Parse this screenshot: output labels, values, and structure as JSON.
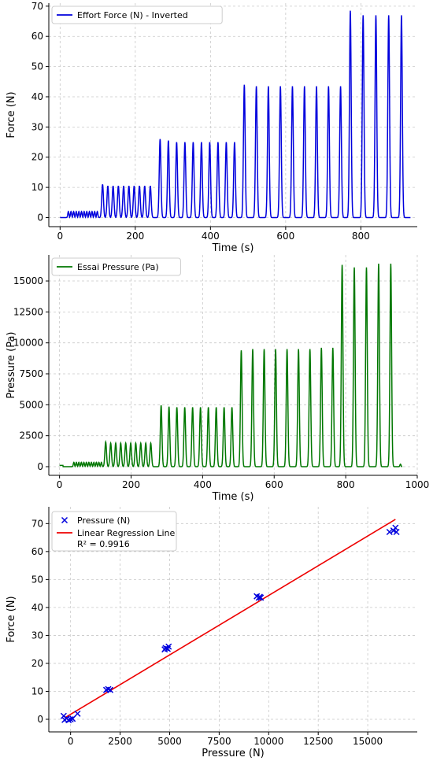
{
  "chart_data": [
    {
      "type": "line",
      "xlabel": "Time (s)",
      "ylabel": "Force (N)",
      "xlim": [
        -30,
        950
      ],
      "ylim": [
        -3,
        71
      ],
      "xticks": [
        0,
        200,
        400,
        600,
        800
      ],
      "yticks": [
        0,
        10,
        20,
        30,
        40,
        50,
        60,
        70
      ],
      "grid": true,
      "legend_position": "top-left",
      "color": "#0000dd",
      "series": [
        {
          "name": "Effort Force (N) - Inverted",
          "baseline_start": [
            0,
            -0.5
          ],
          "baseline_end": [
            932,
            0
          ],
          "peaks": [
            {
              "t": 22,
              "v": 2
            },
            {
              "t": 29,
              "v": 2
            },
            {
              "t": 36,
              "v": 2
            },
            {
              "t": 43,
              "v": 2
            },
            {
              "t": 50,
              "v": 2
            },
            {
              "t": 57,
              "v": 2
            },
            {
              "t": 64,
              "v": 2
            },
            {
              "t": 71,
              "v": 2
            },
            {
              "t": 78,
              "v": 2
            },
            {
              "t": 85,
              "v": 2
            },
            {
              "t": 92,
              "v": 2
            },
            {
              "t": 99,
              "v": 2
            },
            {
              "t": 113,
              "v": 11
            },
            {
              "t": 127,
              "v": 10.5
            },
            {
              "t": 141,
              "v": 10.5
            },
            {
              "t": 155,
              "v": 10.5
            },
            {
              "t": 169,
              "v": 10.5
            },
            {
              "t": 183,
              "v": 10.5
            },
            {
              "t": 197,
              "v": 10.5
            },
            {
              "t": 211,
              "v": 10.5
            },
            {
              "t": 225,
              "v": 10.5
            },
            {
              "t": 240,
              "v": 10.5
            },
            {
              "t": 266,
              "v": 26
            },
            {
              "t": 288,
              "v": 25.5
            },
            {
              "t": 310,
              "v": 25
            },
            {
              "t": 332,
              "v": 25
            },
            {
              "t": 354,
              "v": 25
            },
            {
              "t": 376,
              "v": 25
            },
            {
              "t": 398,
              "v": 25
            },
            {
              "t": 420,
              "v": 25
            },
            {
              "t": 442,
              "v": 25
            },
            {
              "t": 464,
              "v": 25
            },
            {
              "t": 490,
              "v": 44
            },
            {
              "t": 522,
              "v": 43.5
            },
            {
              "t": 554,
              "v": 43.5
            },
            {
              "t": 586,
              "v": 43.5
            },
            {
              "t": 618,
              "v": 43.5
            },
            {
              "t": 650,
              "v": 43.5
            },
            {
              "t": 682,
              "v": 43.5
            },
            {
              "t": 714,
              "v": 43.5
            },
            {
              "t": 746,
              "v": 43.5
            },
            {
              "t": 772,
              "v": 68.5
            },
            {
              "t": 806,
              "v": 67
            },
            {
              "t": 840,
              "v": 67
            },
            {
              "t": 874,
              "v": 67
            },
            {
              "t": 908,
              "v": 67
            }
          ]
        }
      ]
    },
    {
      "type": "line",
      "xlabel": "Time (s)",
      "ylabel": "Pressure (Pa)",
      "xlim": [
        -30,
        1000
      ],
      "ylim": [
        -700,
        17100
      ],
      "xticks": [
        0,
        200,
        400,
        600,
        800,
        1000
      ],
      "yticks": [
        0,
        2500,
        5000,
        7500,
        10000,
        12500,
        15000
      ],
      "grid": true,
      "legend_position": "top-left",
      "color": "#007700",
      "series": [
        {
          "name": "Essai Pressure (Pa)",
          "baseline_start": [
            0,
            100
          ],
          "baseline_end": [
            958,
            0
          ],
          "peaks": [
            {
              "t": 40,
              "v": 350
            },
            {
              "t": 47,
              "v": 350
            },
            {
              "t": 54,
              "v": 350
            },
            {
              "t": 61,
              "v": 350
            },
            {
              "t": 68,
              "v": 350
            },
            {
              "t": 75,
              "v": 350
            },
            {
              "t": 82,
              "v": 350
            },
            {
              "t": 89,
              "v": 350
            },
            {
              "t": 96,
              "v": 350
            },
            {
              "t": 103,
              "v": 350
            },
            {
              "t": 110,
              "v": 350
            },
            {
              "t": 117,
              "v": 350
            },
            {
              "t": 129,
              "v": 2000
            },
            {
              "t": 143,
              "v": 1900
            },
            {
              "t": 157,
              "v": 1900
            },
            {
              "t": 171,
              "v": 1900
            },
            {
              "t": 185,
              "v": 1900
            },
            {
              "t": 199,
              "v": 1900
            },
            {
              "t": 213,
              "v": 1900
            },
            {
              "t": 227,
              "v": 1900
            },
            {
              "t": 241,
              "v": 1900
            },
            {
              "t": 255,
              "v": 1900
            },
            {
              "t": 284,
              "v": 4950
            },
            {
              "t": 306,
              "v": 4850
            },
            {
              "t": 328,
              "v": 4800
            },
            {
              "t": 350,
              "v": 4800
            },
            {
              "t": 372,
              "v": 4800
            },
            {
              "t": 394,
              "v": 4800
            },
            {
              "t": 416,
              "v": 4800
            },
            {
              "t": 438,
              "v": 4800
            },
            {
              "t": 460,
              "v": 4800
            },
            {
              "t": 482,
              "v": 4800
            },
            {
              "t": 508,
              "v": 9400
            },
            {
              "t": 540,
              "v": 9500
            },
            {
              "t": 572,
              "v": 9500
            },
            {
              "t": 604,
              "v": 9500
            },
            {
              "t": 636,
              "v": 9500
            },
            {
              "t": 668,
              "v": 9500
            },
            {
              "t": 700,
              "v": 9500
            },
            {
              "t": 732,
              "v": 9600
            },
            {
              "t": 764,
              "v": 9600
            },
            {
              "t": 790,
              "v": 16300
            },
            {
              "t": 824,
              "v": 16100
            },
            {
              "t": 858,
              "v": 16100
            },
            {
              "t": 892,
              "v": 16400
            },
            {
              "t": 926,
              "v": 16400
            }
          ],
          "tail_spike": {
            "t": 953,
            "v": 200
          }
        }
      ]
    },
    {
      "type": "scatter",
      "xlabel": "Pressure (N)",
      "ylabel": "Force (N)",
      "xlim": [
        -1100,
        17500
      ],
      "ylim": [
        -4.5,
        76
      ],
      "xticks": [
        0,
        2500,
        5000,
        7500,
        10000,
        12500,
        15000
      ],
      "yticks": [
        0,
        10,
        20,
        30,
        40,
        50,
        60,
        70
      ],
      "grid": true,
      "legend_position": "top-left",
      "series": [
        {
          "name": "Pressure (N)",
          "marker": "x",
          "color": "#0000dd",
          "points": [
            [
              -350,
              1.2
            ],
            [
              -300,
              -0.2
            ],
            [
              -200,
              0.3
            ],
            [
              -100,
              -0.3
            ],
            [
              0,
              0
            ],
            [
              100,
              0.2
            ],
            [
              350,
              2
            ],
            [
              1800,
              10.5
            ],
            [
              1900,
              10.8
            ],
            [
              2000,
              10.5
            ],
            [
              4750,
              25
            ],
            [
              4800,
              25.5
            ],
            [
              4900,
              25.2
            ],
            [
              4950,
              26
            ],
            [
              9400,
              44
            ],
            [
              9500,
              43.5
            ],
            [
              9550,
              43.8
            ],
            [
              9600,
              43.5
            ],
            [
              16100,
              67
            ],
            [
              16300,
              67.5
            ],
            [
              16400,
              68.5
            ],
            [
              16450,
              67
            ]
          ]
        },
        {
          "name": "Linear Regression Line",
          "subtitle": "R² = 0.9916",
          "type": "line",
          "color": "#ee0000",
          "points": [
            [
              -300,
              0.5
            ],
            [
              16400,
              71.5
            ]
          ]
        }
      ]
    }
  ]
}
